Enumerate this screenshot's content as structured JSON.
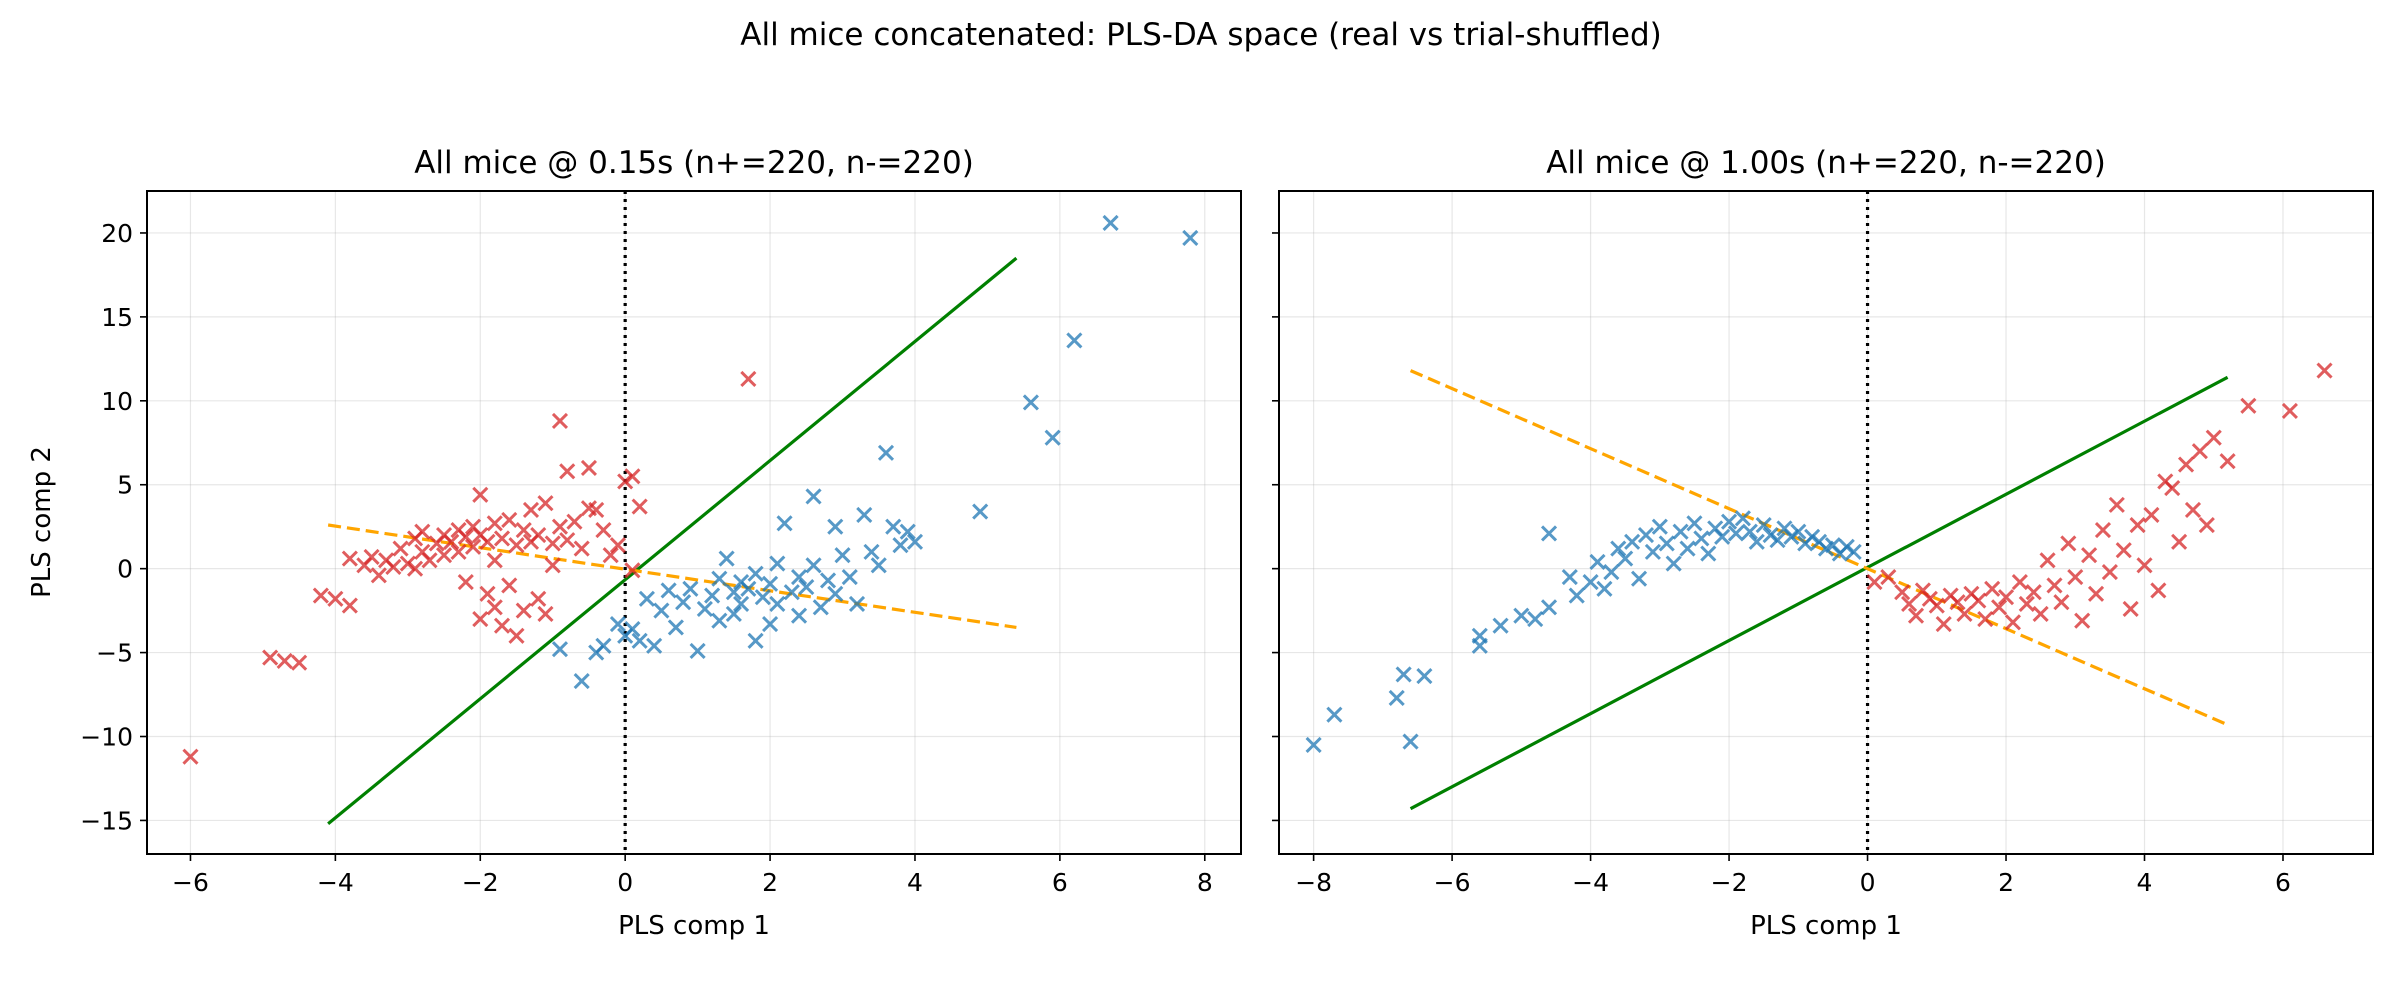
{
  "figure": {
    "title": "All mice concatenated: PLS-DA space (real vs trial-shuffled)"
  },
  "chart_data": [
    {
      "type": "scatter",
      "title": "All mice @ 0.15s (n+=220, n-=220)",
      "xlabel": "PLS comp 1",
      "ylabel": "PLS comp 2",
      "xlim": [
        -6.6,
        8.5
      ],
      "ylim": [
        -17,
        22.5
      ],
      "xticks": [
        -6,
        -4,
        -2,
        0,
        2,
        4,
        6,
        8
      ],
      "yticks": [
        -15,
        -10,
        -5,
        0,
        5,
        10,
        15,
        20
      ],
      "xtick_labels": [
        "−6",
        "−4",
        "−2",
        "0",
        "2",
        "4",
        "6",
        "8"
      ],
      "ytick_labels": [
        "−15",
        "−10",
        "−5",
        "0",
        "5",
        "10",
        "15",
        "20"
      ],
      "grid": true,
      "vertical_line": {
        "x": 0,
        "style": "dotted",
        "color": "#000000"
      },
      "lines": [
        {
          "style": "solid",
          "color": "#008000",
          "points": [
            [
              -4.1,
              -15.2
            ],
            [
              5.4,
              18.5
            ]
          ]
        },
        {
          "style": "dashed",
          "color": "#FFA500",
          "points": [
            [
              -4.1,
              2.6
            ],
            [
              5.4,
              -3.5
            ]
          ]
        }
      ],
      "series": [
        {
          "marker": "x",
          "color": "#d62728",
          "points": [
            [
              -6.0,
              -11.2
            ],
            [
              -4.9,
              -5.3
            ],
            [
              -4.7,
              -5.5
            ],
            [
              -4.5,
              -5.6
            ],
            [
              -4.2,
              -1.6
            ],
            [
              -4.0,
              -1.8
            ],
            [
              -3.8,
              -2.2
            ],
            [
              -3.8,
              0.6
            ],
            [
              -3.6,
              0.2
            ],
            [
              -3.5,
              0.7
            ],
            [
              -3.4,
              -0.4
            ],
            [
              -3.3,
              0.5
            ],
            [
              -3.2,
              0.1
            ],
            [
              -3.1,
              1.2
            ],
            [
              -3.0,
              0.3
            ],
            [
              -2.9,
              1.8
            ],
            [
              -2.9,
              0.0
            ],
            [
              -2.8,
              1.0
            ],
            [
              -2.8,
              2.2
            ],
            [
              -2.7,
              0.5
            ],
            [
              -2.6,
              1.5
            ],
            [
              -2.5,
              2.0
            ],
            [
              -2.5,
              0.8
            ],
            [
              -2.4,
              1.6
            ],
            [
              -2.3,
              2.3
            ],
            [
              -2.3,
              1.0
            ],
            [
              -2.2,
              1.9
            ],
            [
              -2.2,
              -0.8
            ],
            [
              -2.1,
              2.5
            ],
            [
              -2.1,
              1.3
            ],
            [
              -2.0,
              -3.0
            ],
            [
              -2.0,
              4.4
            ],
            [
              -2.0,
              2.0
            ],
            [
              -1.9,
              1.6
            ],
            [
              -1.9,
              -1.5
            ],
            [
              -1.8,
              2.7
            ],
            [
              -1.8,
              -2.3
            ],
            [
              -1.8,
              0.5
            ],
            [
              -1.7,
              1.8
            ],
            [
              -1.7,
              -3.4
            ],
            [
              -1.6,
              2.9
            ],
            [
              -1.6,
              -1.0
            ],
            [
              -1.5,
              1.4
            ],
            [
              -1.5,
              -4.0
            ],
            [
              -1.4,
              2.3
            ],
            [
              -1.4,
              -2.5
            ],
            [
              -1.3,
              3.5
            ],
            [
              -1.3,
              1.6
            ],
            [
              -1.2,
              -1.8
            ],
            [
              -1.2,
              2.0
            ],
            [
              -1.1,
              3.9
            ],
            [
              -1.1,
              -2.7
            ],
            [
              -1.0,
              1.5
            ],
            [
              -1.0,
              0.2
            ],
            [
              -0.9,
              8.8
            ],
            [
              -0.9,
              2.5
            ],
            [
              -0.8,
              5.8
            ],
            [
              -0.8,
              1.7
            ],
            [
              -0.7,
              2.8
            ],
            [
              -0.6,
              1.2
            ],
            [
              -0.5,
              3.6
            ],
            [
              -0.5,
              6.0
            ],
            [
              -0.4,
              3.5
            ],
            [
              -0.3,
              2.3
            ],
            [
              -0.2,
              0.8
            ],
            [
              -0.1,
              1.4
            ],
            [
              0.0,
              5.2
            ],
            [
              0.1,
              5.5
            ],
            [
              0.1,
              -0.1
            ],
            [
              0.2,
              3.7
            ],
            [
              1.7,
              11.3
            ]
          ]
        },
        {
          "marker": "x",
          "color": "#1f77b4",
          "points": [
            [
              -0.9,
              -4.8
            ],
            [
              -0.6,
              -6.7
            ],
            [
              -0.4,
              -5.0
            ],
            [
              -0.3,
              -4.6
            ],
            [
              -0.1,
              -3.3
            ],
            [
              0.0,
              -4.0
            ],
            [
              0.1,
              -3.6
            ],
            [
              0.2,
              -4.3
            ],
            [
              0.3,
              -1.8
            ],
            [
              0.4,
              -4.6
            ],
            [
              0.5,
              -2.5
            ],
            [
              0.6,
              -1.3
            ],
            [
              0.7,
              -3.5
            ],
            [
              0.8,
              -2.0
            ],
            [
              0.9,
              -1.2
            ],
            [
              1.0,
              -4.9
            ],
            [
              1.1,
              -2.4
            ],
            [
              1.2,
              -1.6
            ],
            [
              1.3,
              -0.6
            ],
            [
              1.3,
              -3.1
            ],
            [
              1.4,
              0.6
            ],
            [
              1.5,
              -2.7
            ],
            [
              1.5,
              -1.4
            ],
            [
              1.6,
              -0.8
            ],
            [
              1.6,
              -2.1
            ],
            [
              1.7,
              -1.2
            ],
            [
              1.8,
              -0.3
            ],
            [
              1.8,
              -4.3
            ],
            [
              1.9,
              -1.7
            ],
            [
              2.0,
              -0.9
            ],
            [
              2.0,
              -3.3
            ],
            [
              2.1,
              0.3
            ],
            [
              2.1,
              -2.1
            ],
            [
              2.2,
              2.7
            ],
            [
              2.3,
              -1.4
            ],
            [
              2.4,
              -0.5
            ],
            [
              2.4,
              -2.8
            ],
            [
              2.5,
              -1.1
            ],
            [
              2.6,
              0.2
            ],
            [
              2.6,
              4.3
            ],
            [
              2.7,
              -2.3
            ],
            [
              2.8,
              -0.7
            ],
            [
              2.9,
              -1.5
            ],
            [
              2.9,
              2.5
            ],
            [
              3.0,
              0.8
            ],
            [
              3.1,
              -0.5
            ],
            [
              3.2,
              -2.1
            ],
            [
              3.3,
              3.2
            ],
            [
              3.4,
              1.0
            ],
            [
              3.5,
              0.2
            ],
            [
              3.6,
              6.9
            ],
            [
              3.7,
              2.5
            ],
            [
              3.8,
              1.4
            ],
            [
              3.9,
              2.2
            ],
            [
              4.0,
              1.6
            ],
            [
              4.9,
              3.4
            ],
            [
              5.6,
              9.9
            ],
            [
              5.9,
              7.8
            ],
            [
              6.2,
              13.6
            ],
            [
              6.7,
              20.6
            ],
            [
              7.8,
              19.7
            ]
          ]
        }
      ]
    },
    {
      "type": "scatter",
      "title": "All mice @ 1.00s (n+=220, n-=220)",
      "xlabel": "PLS comp 1",
      "ylabel": "",
      "xlim": [
        -8.5,
        7.3
      ],
      "ylim": [
        -17,
        22.5
      ],
      "xticks": [
        -8,
        -6,
        -4,
        -2,
        0,
        2,
        4,
        6
      ],
      "yticks": [
        -15,
        -10,
        -5,
        0,
        5,
        10,
        15,
        20
      ],
      "xtick_labels": [
        "−8",
        "−6",
        "−4",
        "−2",
        "0",
        "2",
        "4",
        "6"
      ],
      "grid": true,
      "vertical_line": {
        "x": 0,
        "style": "dotted",
        "color": "#000000"
      },
      "lines": [
        {
          "style": "solid",
          "color": "#008000",
          "points": [
            [
              -6.6,
              -14.3
            ],
            [
              5.2,
              11.4
            ]
          ]
        },
        {
          "style": "dashed",
          "color": "#FFA500",
          "points": [
            [
              -6.6,
              11.8
            ],
            [
              5.2,
              -9.3
            ]
          ]
        }
      ],
      "series": [
        {
          "marker": "x",
          "color": "#1f77b4",
          "points": [
            [
              -8.0,
              -10.5
            ],
            [
              -7.7,
              -8.7
            ],
            [
              -6.8,
              -7.7
            ],
            [
              -6.7,
              -6.3
            ],
            [
              -6.6,
              -10.3
            ],
            [
              -6.4,
              -6.4
            ],
            [
              -5.6,
              -4.6
            ],
            [
              -5.6,
              -4.0
            ],
            [
              -5.3,
              -3.4
            ],
            [
              -5.0,
              -2.8
            ],
            [
              -4.8,
              -3.0
            ],
            [
              -4.6,
              -2.3
            ],
            [
              -4.6,
              2.1
            ],
            [
              -4.3,
              -0.5
            ],
            [
              -4.2,
              -1.6
            ],
            [
              -4.0,
              -0.8
            ],
            [
              -3.9,
              0.4
            ],
            [
              -3.8,
              -1.2
            ],
            [
              -3.7,
              -0.2
            ],
            [
              -3.6,
              1.2
            ],
            [
              -3.5,
              0.6
            ],
            [
              -3.4,
              1.6
            ],
            [
              -3.3,
              -0.6
            ],
            [
              -3.2,
              2.0
            ],
            [
              -3.1,
              1.0
            ],
            [
              -3.0,
              2.5
            ],
            [
              -2.9,
              1.5
            ],
            [
              -2.8,
              0.3
            ],
            [
              -2.7,
              2.2
            ],
            [
              -2.6,
              1.2
            ],
            [
              -2.5,
              2.7
            ],
            [
              -2.4,
              1.8
            ],
            [
              -2.3,
              0.9
            ],
            [
              -2.2,
              2.4
            ],
            [
              -2.1,
              1.9
            ],
            [
              -2.0,
              2.8
            ],
            [
              -1.9,
              2.1
            ],
            [
              -1.8,
              3.0
            ],
            [
              -1.7,
              2.2
            ],
            [
              -1.6,
              1.6
            ],
            [
              -1.5,
              2.6
            ],
            [
              -1.4,
              2.0
            ],
            [
              -1.3,
              1.7
            ],
            [
              -1.2,
              2.4
            ],
            [
              -1.1,
              1.9
            ],
            [
              -1.0,
              2.2
            ],
            [
              -0.9,
              1.5
            ],
            [
              -0.8,
              1.9
            ],
            [
              -0.7,
              1.6
            ],
            [
              -0.6,
              1.2
            ],
            [
              -0.5,
              1.4
            ],
            [
              -0.4,
              0.9
            ],
            [
              -0.3,
              1.3
            ],
            [
              -0.2,
              1.0
            ]
          ]
        },
        {
          "marker": "x",
          "color": "#d62728",
          "points": [
            [
              0.1,
              -0.8
            ],
            [
              0.3,
              -0.5
            ],
            [
              0.5,
              -1.4
            ],
            [
              0.6,
              -2.1
            ],
            [
              0.7,
              -2.8
            ],
            [
              0.8,
              -1.3
            ],
            [
              0.9,
              -1.8
            ],
            [
              1.0,
              -2.2
            ],
            [
              1.1,
              -3.3
            ],
            [
              1.2,
              -1.6
            ],
            [
              1.3,
              -2.0
            ],
            [
              1.4,
              -2.7
            ],
            [
              1.5,
              -1.5
            ],
            [
              1.6,
              -1.9
            ],
            [
              1.7,
              -3.0
            ],
            [
              1.8,
              -1.2
            ],
            [
              1.9,
              -2.3
            ],
            [
              2.0,
              -1.7
            ],
            [
              2.1,
              -3.2
            ],
            [
              2.2,
              -0.8
            ],
            [
              2.3,
              -2.1
            ],
            [
              2.4,
              -1.4
            ],
            [
              2.5,
              -2.7
            ],
            [
              2.6,
              0.5
            ],
            [
              2.7,
              -1.0
            ],
            [
              2.8,
              -2.0
            ],
            [
              2.9,
              1.5
            ],
            [
              3.0,
              -0.5
            ],
            [
              3.1,
              -3.1
            ],
            [
              3.2,
              0.8
            ],
            [
              3.3,
              -1.5
            ],
            [
              3.4,
              2.3
            ],
            [
              3.5,
              -0.2
            ],
            [
              3.6,
              3.8
            ],
            [
              3.7,
              1.1
            ],
            [
              3.8,
              -2.4
            ],
            [
              3.9,
              2.6
            ],
            [
              4.0,
              0.2
            ],
            [
              4.1,
              3.2
            ],
            [
              4.2,
              -1.3
            ],
            [
              4.3,
              5.2
            ],
            [
              4.4,
              4.8
            ],
            [
              4.5,
              1.6
            ],
            [
              4.6,
              6.2
            ],
            [
              4.7,
              3.5
            ],
            [
              4.8,
              7.0
            ],
            [
              4.9,
              2.6
            ],
            [
              5.0,
              7.8
            ],
            [
              5.2,
              6.4
            ],
            [
              5.5,
              9.7
            ],
            [
              6.1,
              9.4
            ],
            [
              6.6,
              11.8
            ]
          ]
        }
      ]
    }
  ]
}
